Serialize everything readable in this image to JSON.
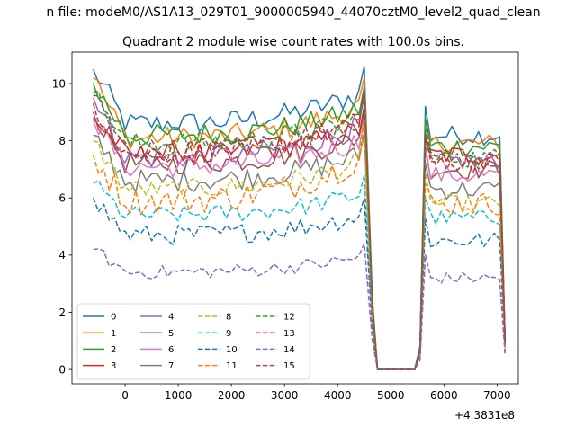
{
  "chart_data": {
    "type": "line",
    "suptitle": "n file: modeM0/AS1A13_029T01_9000005940_44070cztM0_level2_quad_clean",
    "title": "Quadrant 2 module wise count rates with 100.0s bins.",
    "xlabel": "",
    "ylabel": "",
    "x_offset_label": "+4.3831e8",
    "xlim": [
      -1000,
      7400
    ],
    "ylim": [
      -0.5,
      11.1
    ],
    "xticks": [
      0,
      1000,
      2000,
      3000,
      4000,
      5000,
      6000,
      7000
    ],
    "xtick_labels": [
      "0",
      "1000",
      "2000",
      "3000",
      "4000",
      "5000",
      "6000",
      "7000"
    ],
    "yticks": [
      0,
      2,
      4,
      6,
      8,
      10
    ],
    "ytick_labels": [
      "0",
      "2",
      "4",
      "6",
      "8",
      "10"
    ],
    "grid": false,
    "legend_placement": "lower-left",
    "legend_columns": 4,
    "segments": [
      {
        "x_start": -600,
        "x_end": 4550,
        "step": 100
      },
      {
        "x_end": 4650,
        "shape": "fall"
      },
      {
        "x_start": 4750,
        "x_end": 5450,
        "step": 100,
        "flat": 0
      },
      {
        "x_end": 5550,
        "shape": "rise"
      },
      {
        "x_start": 5650,
        "x_end": 7050,
        "step": 100
      },
      {
        "x_end": 7150,
        "shape": "fall"
      }
    ],
    "series": [
      {
        "name": "0",
        "color": "#1f77b4",
        "dash": "solid",
        "start": 10.5,
        "level": 8.6,
        "end_peak": 10.6,
        "second_level": 8.2,
        "noise": 0.25
      },
      {
        "name": "1",
        "color": "#ff7f0e",
        "dash": "solid",
        "start": 10.2,
        "level": 8.1,
        "end_peak": 10.2,
        "second_level": 7.9,
        "noise": 0.25
      },
      {
        "name": "2",
        "color": "#2ca02c",
        "dash": "solid",
        "start": 10.0,
        "level": 8.2,
        "end_peak": 9.9,
        "second_level": 7.8,
        "noise": 0.25
      },
      {
        "name": "3",
        "color": "#d62728",
        "dash": "solid",
        "start": 8.8,
        "level": 7.5,
        "end_peak": 9.2,
        "second_level": 7.5,
        "noise": 0.25
      },
      {
        "name": "4",
        "color": "#9467bd",
        "dash": "solid",
        "start": 9.5,
        "level": 7.4,
        "end_peak": 9.5,
        "second_level": 7.3,
        "noise": 0.25
      },
      {
        "name": "5",
        "color": "#8c564b",
        "dash": "solid",
        "start": 9.0,
        "level": 7.2,
        "end_peak": 9.0,
        "second_level": 7.0,
        "noise": 0.25
      },
      {
        "name": "6",
        "color": "#e377c2",
        "dash": "solid",
        "start": 8.7,
        "level": 7.1,
        "end_peak": 8.8,
        "second_level": 6.8,
        "noise": 0.25
      },
      {
        "name": "7",
        "color": "#7f7f7f",
        "dash": "solid",
        "start": 8.2,
        "level": 6.6,
        "end_peak": 8.3,
        "second_level": 6.3,
        "noise": 0.25
      },
      {
        "name": "8",
        "color": "#bcbd22",
        "dash": "dashed",
        "start": 8.0,
        "level": 6.3,
        "end_peak": 8.1,
        "second_level": 5.8,
        "noise": 0.22
      },
      {
        "name": "9",
        "color": "#17becf",
        "dash": "dashed",
        "start": 6.5,
        "level": 5.4,
        "end_peak": 6.8,
        "second_level": 5.3,
        "noise": 0.2
      },
      {
        "name": "10",
        "color": "#1f77b4",
        "dash": "dashed",
        "start": 6.0,
        "level": 4.7,
        "end_peak": 6.0,
        "second_level": 4.5,
        "noise": 0.22
      },
      {
        "name": "11",
        "color": "#ff7f0e",
        "dash": "dashed",
        "start": 7.5,
        "level": 5.9,
        "end_peak": 8.7,
        "second_level": 5.8,
        "noise": 0.3
      },
      {
        "name": "12",
        "color": "#2ca02c",
        "dash": "dashed",
        "start": 9.7,
        "level": 7.9,
        "end_peak": 9.6,
        "second_level": 7.4,
        "noise": 0.25
      },
      {
        "name": "13",
        "color": "#d62728",
        "dash": "dashed",
        "start": 9.3,
        "level": 7.6,
        "end_peak": 9.7,
        "second_level": 7.2,
        "noise": 0.25
      },
      {
        "name": "14",
        "color": "#9467bd",
        "dash": "dashed",
        "start": 4.2,
        "level": 3.4,
        "end_peak": 4.4,
        "second_level": 3.2,
        "noise": 0.15
      },
      {
        "name": "15",
        "color": "#8c564b",
        "dash": "dashed",
        "start": 9.6,
        "level": 7.7,
        "end_peak": 9.8,
        "second_level": 7.3,
        "noise": 0.25
      }
    ]
  }
}
